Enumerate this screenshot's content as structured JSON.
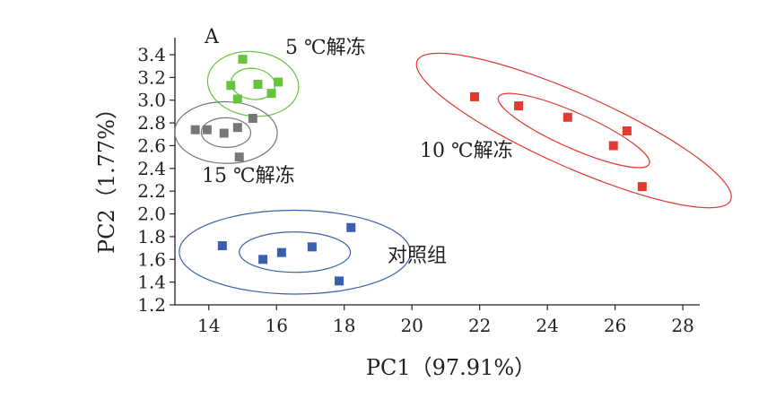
{
  "chart_data": {
    "type": "scatter",
    "panel_label": "A",
    "xlabel": "PC1（97.91%）",
    "ylabel": "PC2（1.77%）",
    "xlim": [
      13,
      28.5
    ],
    "ylim": [
      1.2,
      3.55
    ],
    "x_ticks": [
      "14",
      "16",
      "18",
      "20",
      "22",
      "24",
      "26",
      "28"
    ],
    "y_ticks": [
      "1.2",
      "1.4",
      "1.6",
      "1.8",
      "2.0",
      "2.2",
      "2.4",
      "2.6",
      "2.8",
      "3.0",
      "3.2",
      "3.4"
    ],
    "grid": false,
    "series": [
      {
        "name": "5 ℃解冻",
        "color": "#66c43a",
        "ellipse_color": "#66c43a",
        "points": [
          [
            15.0,
            3.36
          ],
          [
            14.65,
            3.13
          ],
          [
            14.85,
            3.01
          ],
          [
            15.45,
            3.14
          ],
          [
            15.85,
            3.06
          ],
          [
            16.05,
            3.16
          ]
        ]
      },
      {
        "name": "15 ℃解冻",
        "color": "#777777",
        "ellipse_color": "#777777",
        "points": [
          [
            13.6,
            2.74
          ],
          [
            13.95,
            2.74
          ],
          [
            14.45,
            2.71
          ],
          [
            14.85,
            2.76
          ],
          [
            15.3,
            2.84
          ],
          [
            14.9,
            2.5
          ]
        ]
      },
      {
        "name": "10 ℃解冻",
        "color": "#e03a33",
        "ellipse_color": "#e03a33",
        "points": [
          [
            21.85,
            3.03
          ],
          [
            23.15,
            2.95
          ],
          [
            24.6,
            2.85
          ],
          [
            25.95,
            2.6
          ],
          [
            26.35,
            2.73
          ],
          [
            26.8,
            2.24
          ]
        ]
      },
      {
        "name": "对照组",
        "color": "#3a5fb0",
        "ellipse_color": "#3a5fb0",
        "points": [
          [
            14.4,
            1.72
          ],
          [
            15.6,
            1.6
          ],
          [
            16.15,
            1.66
          ],
          [
            17.05,
            1.71
          ],
          [
            18.2,
            1.88
          ],
          [
            17.85,
            1.41
          ]
        ]
      }
    ]
  }
}
